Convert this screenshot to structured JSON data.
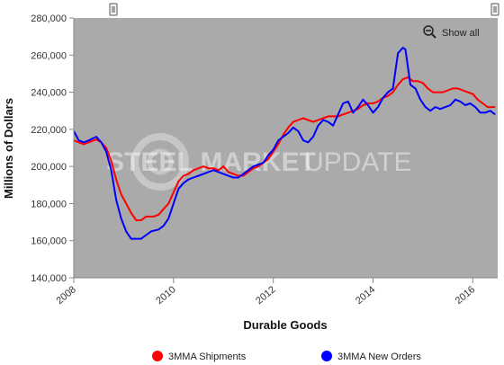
{
  "controls": {
    "show_all_label": "Show all",
    "zoom_icon": "magnifier-minus-icon"
  },
  "watermark": {
    "text_bold": "STEEL MARKET",
    "text_light": "UPDATE"
  },
  "colors": {
    "plot_bg": "#aaaaaa",
    "shipments": "#ff0000",
    "orders": "#0000ff"
  },
  "chart_data": {
    "type": "line",
    "title": "",
    "xlabel": "Durable Goods",
    "ylabel": "Millions of Dollars",
    "xlim": [
      2008.0,
      2016.5
    ],
    "ylim": [
      140000,
      280000
    ],
    "x_ticks": [
      "2008",
      "2010",
      "2012",
      "2014",
      "2016"
    ],
    "y_ticks": [
      "140,000",
      "160,000",
      "180,000",
      "200,000",
      "220,000",
      "240,000",
      "260,000",
      "280,000"
    ],
    "grid": false,
    "legend_position": "bottom",
    "series": [
      {
        "name": "3MMA Shipments",
        "color": "#ff0000",
        "points": [
          [
            2008.0,
            214000
          ],
          [
            2008.1,
            213000
          ],
          [
            2008.2,
            212000
          ],
          [
            2008.3,
            213000
          ],
          [
            2008.45,
            214500
          ],
          [
            2008.55,
            213000
          ],
          [
            2008.65,
            210000
          ],
          [
            2008.75,
            203000
          ],
          [
            2008.85,
            193000
          ],
          [
            2008.95,
            185000
          ],
          [
            2009.05,
            180000
          ],
          [
            2009.15,
            175000
          ],
          [
            2009.25,
            171000
          ],
          [
            2009.35,
            171000
          ],
          [
            2009.45,
            173000
          ],
          [
            2009.6,
            173000
          ],
          [
            2009.7,
            174000
          ],
          [
            2009.8,
            177000
          ],
          [
            2009.9,
            180000
          ],
          [
            2010.0,
            186000
          ],
          [
            2010.1,
            192000
          ],
          [
            2010.2,
            195000
          ],
          [
            2010.3,
            196000
          ],
          [
            2010.4,
            198000
          ],
          [
            2010.5,
            199000
          ],
          [
            2010.6,
            200000
          ],
          [
            2010.7,
            199000
          ],
          [
            2010.8,
            199000
          ],
          [
            2010.9,
            198000
          ],
          [
            2011.0,
            200000
          ],
          [
            2011.1,
            197000
          ],
          [
            2011.2,
            196000
          ],
          [
            2011.3,
            195000
          ],
          [
            2011.4,
            195000
          ],
          [
            2011.5,
            197000
          ],
          [
            2011.6,
            199000
          ],
          [
            2011.7,
            200000
          ],
          [
            2011.8,
            202000
          ],
          [
            2011.9,
            204000
          ],
          [
            2012.0,
            208000
          ],
          [
            2012.1,
            212000
          ],
          [
            2012.2,
            217000
          ],
          [
            2012.3,
            221000
          ],
          [
            2012.4,
            224000
          ],
          [
            2012.5,
            225000
          ],
          [
            2012.6,
            226000
          ],
          [
            2012.7,
            225000
          ],
          [
            2012.8,
            224000
          ],
          [
            2012.9,
            225000
          ],
          [
            2013.0,
            226000
          ],
          [
            2013.1,
            227000
          ],
          [
            2013.2,
            227000
          ],
          [
            2013.3,
            227000
          ],
          [
            2013.4,
            228000
          ],
          [
            2013.5,
            229000
          ],
          [
            2013.6,
            230000
          ],
          [
            2013.7,
            231000
          ],
          [
            2013.8,
            233000
          ],
          [
            2013.9,
            234000
          ],
          [
            2014.0,
            234000
          ],
          [
            2014.1,
            235000
          ],
          [
            2014.2,
            237000
          ],
          [
            2014.3,
            238000
          ],
          [
            2014.4,
            240000
          ],
          [
            2014.5,
            244000
          ],
          [
            2014.6,
            247000
          ],
          [
            2014.7,
            248000
          ],
          [
            2014.8,
            246000
          ],
          [
            2014.9,
            246000
          ],
          [
            2015.0,
            245000
          ],
          [
            2015.1,
            242000
          ],
          [
            2015.2,
            240000
          ],
          [
            2015.3,
            240000
          ],
          [
            2015.4,
            240000
          ],
          [
            2015.5,
            241000
          ],
          [
            2015.6,
            242000
          ],
          [
            2015.7,
            242000
          ],
          [
            2015.8,
            241000
          ],
          [
            2015.9,
            240000
          ],
          [
            2016.0,
            239000
          ],
          [
            2016.1,
            236000
          ],
          [
            2016.2,
            234000
          ],
          [
            2016.3,
            232000
          ],
          [
            2016.45,
            232000
          ]
        ]
      },
      {
        "name": "3MMA New Orders",
        "color": "#0000ff",
        "points": [
          [
            2008.0,
            219000
          ],
          [
            2008.1,
            214000
          ],
          [
            2008.2,
            213000
          ],
          [
            2008.3,
            214000
          ],
          [
            2008.45,
            216000
          ],
          [
            2008.55,
            213000
          ],
          [
            2008.65,
            208000
          ],
          [
            2008.75,
            198000
          ],
          [
            2008.85,
            182000
          ],
          [
            2008.95,
            172000
          ],
          [
            2009.05,
            165000
          ],
          [
            2009.15,
            161000
          ],
          [
            2009.25,
            161000
          ],
          [
            2009.35,
            161000
          ],
          [
            2009.45,
            163000
          ],
          [
            2009.55,
            165000
          ],
          [
            2009.7,
            166000
          ],
          [
            2009.8,
            168000
          ],
          [
            2009.9,
            172000
          ],
          [
            2010.0,
            180000
          ],
          [
            2010.1,
            188000
          ],
          [
            2010.2,
            191000
          ],
          [
            2010.3,
            193000
          ],
          [
            2010.4,
            194000
          ],
          [
            2010.5,
            195000
          ],
          [
            2010.6,
            196000
          ],
          [
            2010.7,
            197000
          ],
          [
            2010.8,
            198000
          ],
          [
            2010.9,
            197000
          ],
          [
            2011.0,
            196000
          ],
          [
            2011.1,
            195000
          ],
          [
            2011.2,
            194000
          ],
          [
            2011.3,
            194000
          ],
          [
            2011.4,
            196000
          ],
          [
            2011.5,
            198000
          ],
          [
            2011.6,
            200000
          ],
          [
            2011.7,
            201000
          ],
          [
            2011.8,
            202000
          ],
          [
            2011.9,
            206000
          ],
          [
            2012.0,
            209000
          ],
          [
            2012.1,
            214000
          ],
          [
            2012.2,
            216000
          ],
          [
            2012.3,
            218000
          ],
          [
            2012.4,
            221000
          ],
          [
            2012.5,
            219000
          ],
          [
            2012.6,
            214000
          ],
          [
            2012.7,
            213000
          ],
          [
            2012.8,
            216000
          ],
          [
            2012.9,
            222000
          ],
          [
            2013.0,
            225000
          ],
          [
            2013.1,
            224000
          ],
          [
            2013.2,
            222000
          ],
          [
            2013.3,
            228000
          ],
          [
            2013.4,
            234000
          ],
          [
            2013.5,
            235000
          ],
          [
            2013.6,
            229000
          ],
          [
            2013.7,
            232000
          ],
          [
            2013.8,
            236000
          ],
          [
            2013.9,
            233000
          ],
          [
            2014.0,
            229000
          ],
          [
            2014.1,
            232000
          ],
          [
            2014.2,
            237000
          ],
          [
            2014.3,
            240000
          ],
          [
            2014.4,
            242000
          ],
          [
            2014.5,
            261000
          ],
          [
            2014.6,
            264000
          ],
          [
            2014.65,
            263000
          ],
          [
            2014.75,
            244000
          ],
          [
            2014.85,
            242000
          ],
          [
            2014.95,
            236000
          ],
          [
            2015.05,
            232000
          ],
          [
            2015.15,
            230000
          ],
          [
            2015.25,
            232000
          ],
          [
            2015.35,
            231000
          ],
          [
            2015.45,
            232000
          ],
          [
            2015.55,
            233000
          ],
          [
            2015.65,
            236000
          ],
          [
            2015.75,
            235000
          ],
          [
            2015.85,
            233000
          ],
          [
            2015.95,
            234000
          ],
          [
            2016.05,
            232000
          ],
          [
            2016.15,
            229000
          ],
          [
            2016.25,
            229000
          ],
          [
            2016.35,
            230000
          ],
          [
            2016.45,
            228000
          ]
        ]
      }
    ]
  }
}
